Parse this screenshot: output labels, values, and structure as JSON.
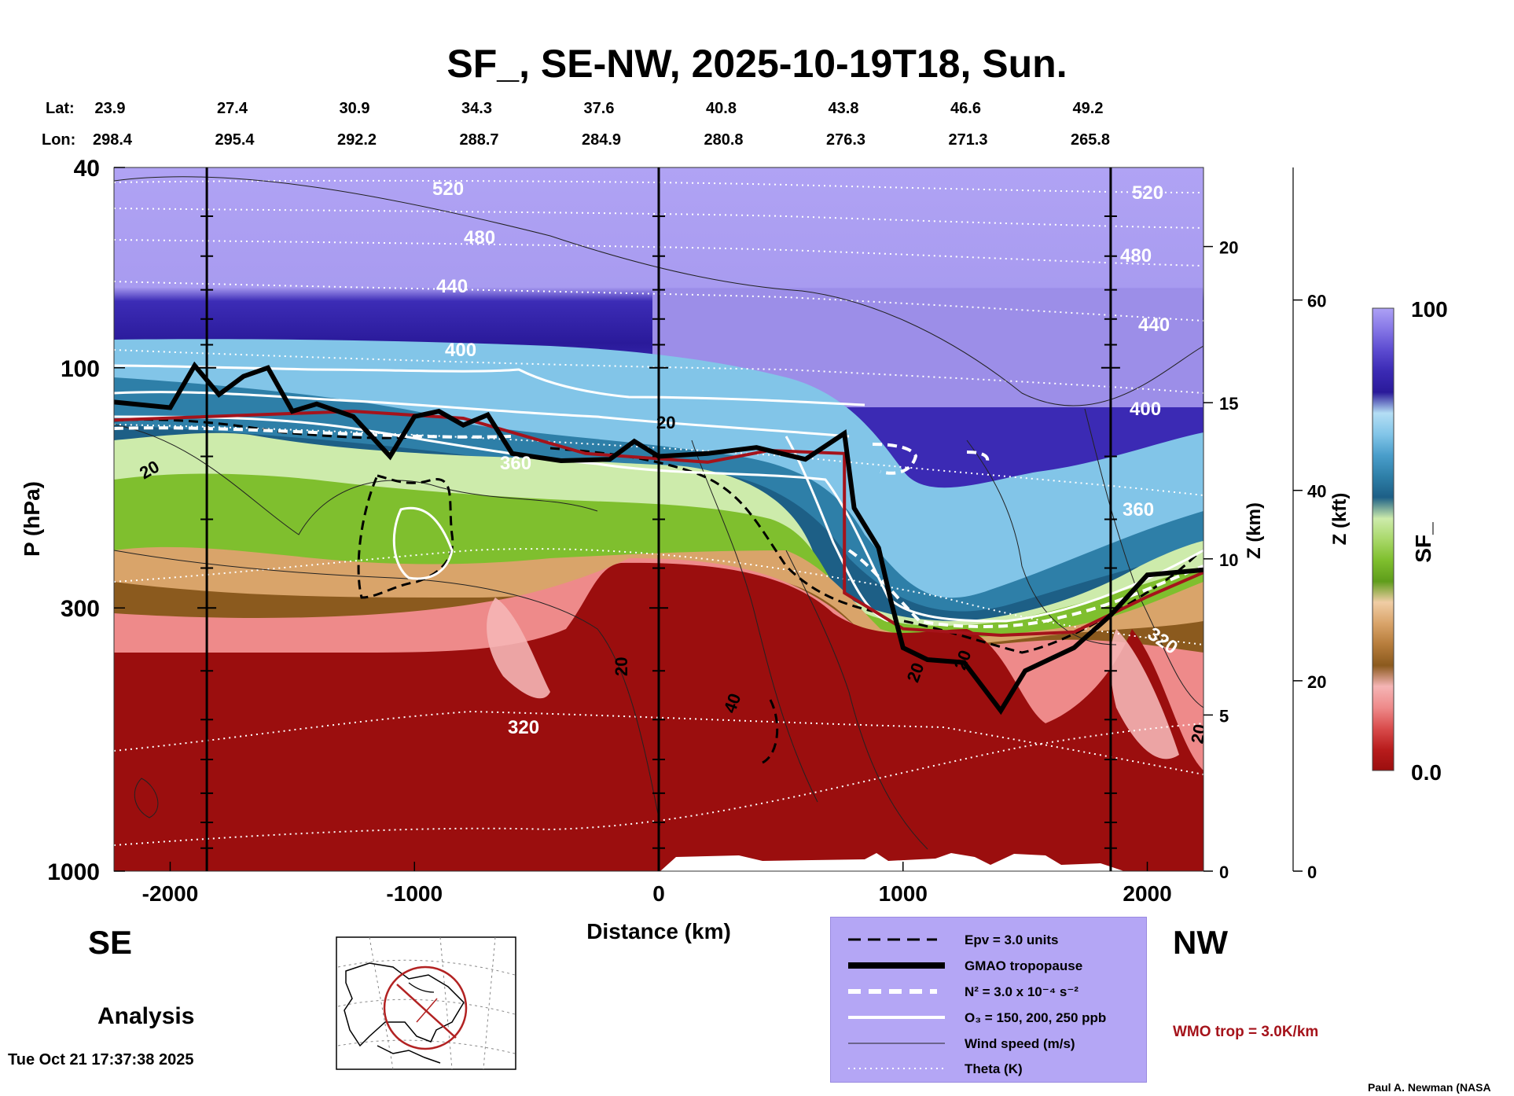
{
  "header": {
    "title": "SF_, SE-NW, 2025-10-19T18, Sun.",
    "lat_label": "Lat:",
    "lon_label": "Lon:",
    "lats": [
      "23.9",
      "27.4",
      "30.9",
      "34.3",
      "37.6",
      "40.8",
      "43.8",
      "46.6",
      "49.2"
    ],
    "lons": [
      "298.4",
      "295.4",
      "292.2",
      "288.7",
      "284.9",
      "280.8",
      "276.3",
      "271.3",
      "265.8"
    ]
  },
  "labels": {
    "left_direction": "SE",
    "right_direction": "NW",
    "analysis": "Analysis",
    "timestamp": "Tue Oct 21 17:37:38 2025",
    "credit": "Paul A. Newman (NASA",
    "wmo": "WMO trop = 3.0K/km"
  },
  "legend": {
    "items": [
      {
        "style": "dashed-black",
        "label": "Epv = 3.0 units"
      },
      {
        "style": "thick-black",
        "label": "GMAO tropopause"
      },
      {
        "style": "dashed-white",
        "label": "N² = 3.0 x 10⁻⁴ s⁻²"
      },
      {
        "style": "solid-white",
        "label": "O₃ = 150, 200, 250 ppb"
      },
      {
        "style": "thin-black",
        "label": "Wind speed (m/s)"
      },
      {
        "style": "dotted-white",
        "label": "Theta (K)"
      }
    ]
  },
  "colorbar": {
    "label": "SF_",
    "max_label": "100",
    "min_label": "0.0",
    "stops": [
      "#9b0e0e",
      "#b81c1c",
      "#d94c4c",
      "#ee8a8a",
      "#f5b5b5",
      "#8b5a1e",
      "#b77d3c",
      "#d9a46a",
      "#f0cda5",
      "#5f9d1b",
      "#7fbf2e",
      "#a9d86a",
      "#cdebab",
      "#1d5f86",
      "#2e7fa8",
      "#4a9ecb",
      "#82c5e8",
      "#b4def4",
      "#2a1a9a",
      "#3b2ab4",
      "#5c4bd0",
      "#8677e6",
      "#ada1f5"
    ]
  },
  "chart_data": {
    "type": "heatmap",
    "title": "SF_, SE-NW, 2025-10-19T18, Sun.",
    "xlabel": "Distance (km)",
    "ylabel": "P (hPa)",
    "y2label": "Z (km)",
    "y3label": "Z (kft)",
    "xlim": [
      -2230,
      2230
    ],
    "ylim": [
      1000,
      40
    ],
    "yscale": "log",
    "x_ticks": [
      -2000,
      -1000,
      0,
      1000,
      2000
    ],
    "y_ticks": [
      40,
      100,
      300,
      1000
    ],
    "z_km_ticks": [
      0,
      5,
      10,
      15,
      20
    ],
    "z_kft_ticks": [
      0,
      20,
      40,
      60
    ],
    "colorbar_range": [
      0.0,
      100
    ],
    "vertical_lines_km": [
      -1850,
      0,
      1850
    ],
    "theta_labels": [
      "520",
      "480",
      "440",
      "400",
      "360",
      "320"
    ],
    "wind_labels": [
      "20",
      "40"
    ],
    "tropopause_gmao": [
      {
        "x": -2230,
        "p": 117
      },
      {
        "x": -2000,
        "p": 120
      },
      {
        "x": -1900,
        "p": 99
      },
      {
        "x": -1800,
        "p": 113
      },
      {
        "x": -1700,
        "p": 104
      },
      {
        "x": -1600,
        "p": 100
      },
      {
        "x": -1500,
        "p": 122
      },
      {
        "x": -1400,
        "p": 118
      },
      {
        "x": -1250,
        "p": 125
      },
      {
        "x": -1100,
        "p": 150
      },
      {
        "x": -1000,
        "p": 125
      },
      {
        "x": -900,
        "p": 122
      },
      {
        "x": -800,
        "p": 130
      },
      {
        "x": -700,
        "p": 124
      },
      {
        "x": -600,
        "p": 148
      },
      {
        "x": -400,
        "p": 153
      },
      {
        "x": -200,
        "p": 152
      },
      {
        "x": -100,
        "p": 140
      },
      {
        "x": 0,
        "p": 150
      },
      {
        "x": 200,
        "p": 148
      },
      {
        "x": 400,
        "p": 144
      },
      {
        "x": 600,
        "p": 152
      },
      {
        "x": 760,
        "p": 135
      },
      {
        "x": 800,
        "p": 190
      },
      {
        "x": 900,
        "p": 228
      },
      {
        "x": 950,
        "p": 290
      },
      {
        "x": 1000,
        "p": 360
      },
      {
        "x": 1100,
        "p": 380
      },
      {
        "x": 1250,
        "p": 385
      },
      {
        "x": 1400,
        "p": 480
      },
      {
        "x": 1500,
        "p": 400
      },
      {
        "x": 1700,
        "p": 360
      },
      {
        "x": 1850,
        "p": 310
      },
      {
        "x": 2000,
        "p": 258
      },
      {
        "x": 2230,
        "p": 252
      }
    ],
    "tropopause_wmo": [
      {
        "x": -2230,
        "p": 127
      },
      {
        "x": -1250,
        "p": 122
      },
      {
        "x": -800,
        "p": 126
      },
      {
        "x": -300,
        "p": 148
      },
      {
        "x": 200,
        "p": 154
      },
      {
        "x": 450,
        "p": 146
      },
      {
        "x": 760,
        "p": 148
      },
      {
        "x": 760,
        "p": 280
      },
      {
        "x": 1000,
        "p": 330
      },
      {
        "x": 1400,
        "p": 340
      },
      {
        "x": 1700,
        "p": 335
      },
      {
        "x": 2000,
        "p": 285
      },
      {
        "x": 2230,
        "p": 255
      }
    ]
  }
}
